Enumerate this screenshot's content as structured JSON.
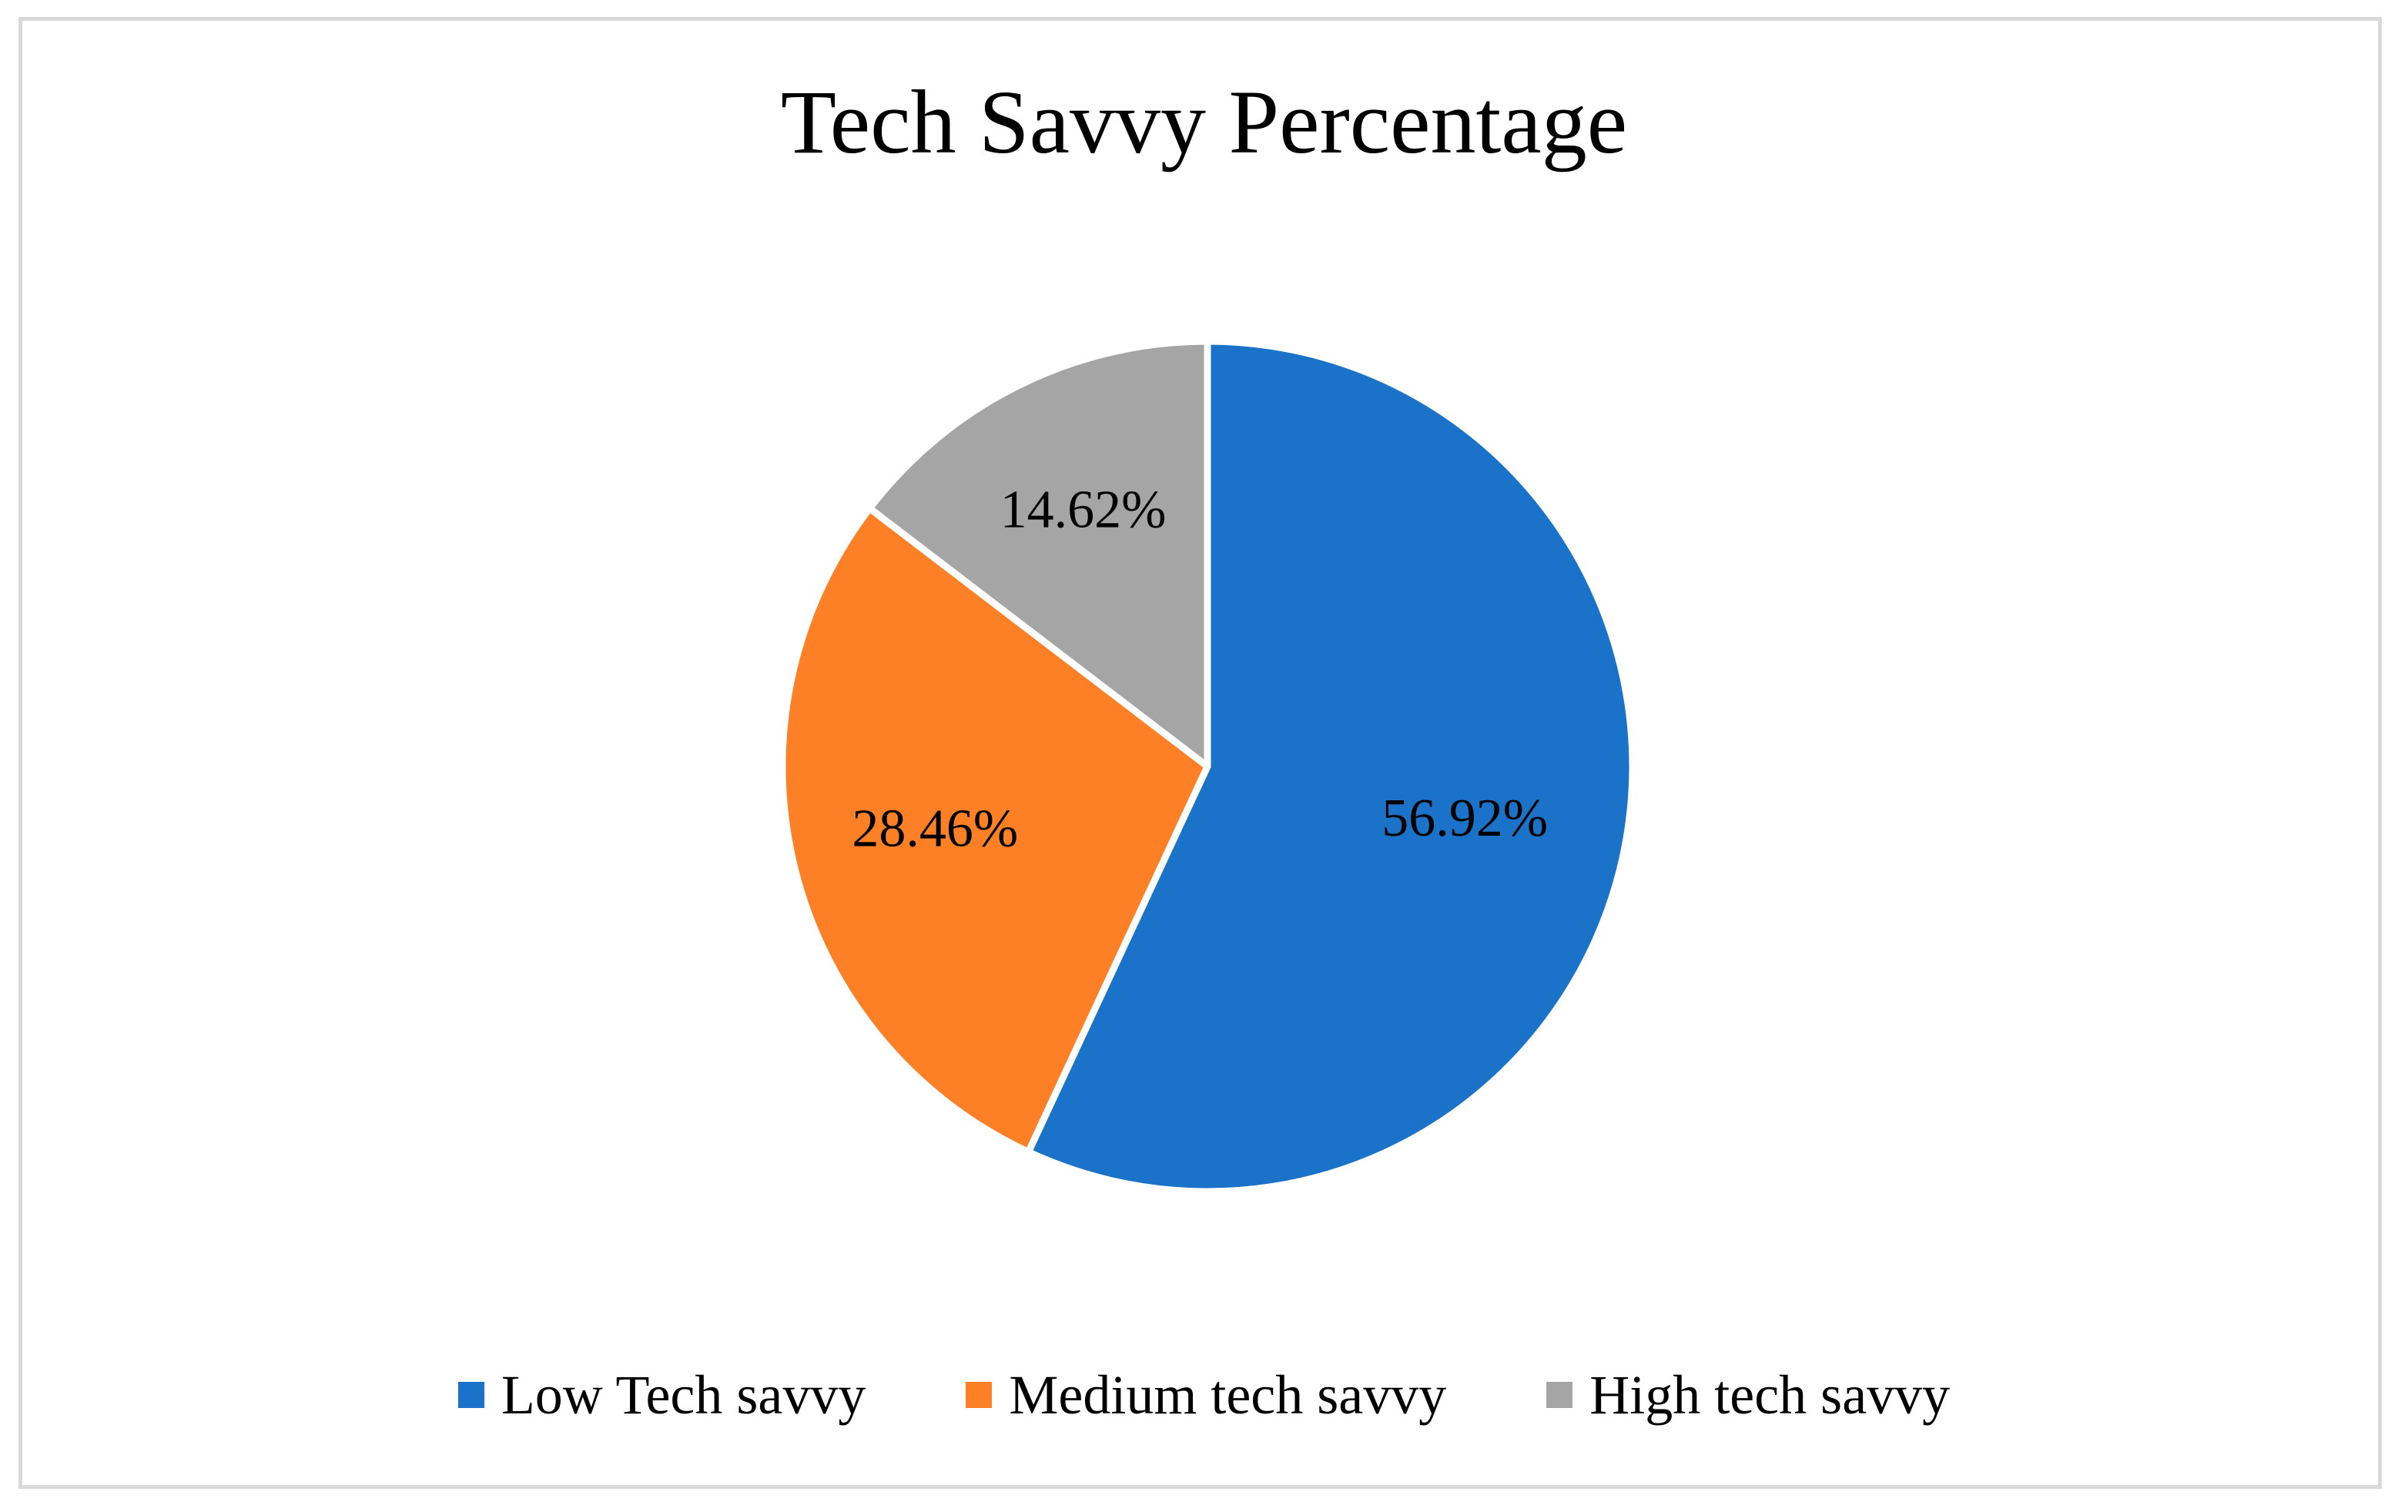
{
  "chart_data": {
    "type": "pie",
    "title": "Tech Savvy Percentage",
    "slices": [
      {
        "name": "Low Tech savvy",
        "value": 56.92,
        "label": "56.92%",
        "color": "#1a73c8"
      },
      {
        "name": "Medium tech savvy",
        "value": 28.46,
        "label": "28.46%",
        "color": "#fd7f26"
      },
      {
        "name": "High tech savvy",
        "value": 14.62,
        "label": "14.62%",
        "color": "#a5a5a5"
      }
    ],
    "legend_position": "bottom",
    "start_angle": "12 o'clock",
    "direction": "clockwise"
  }
}
